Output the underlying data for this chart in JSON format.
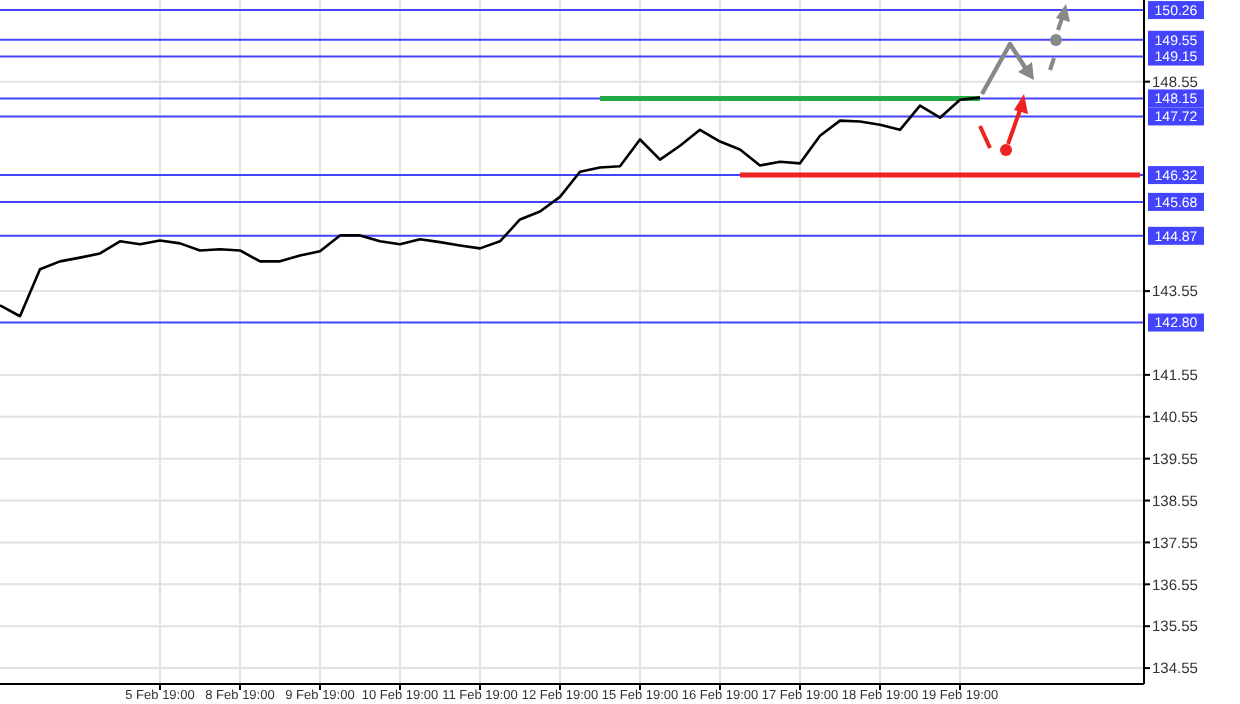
{
  "chart_data": {
    "type": "line",
    "categories": [
      null,
      null,
      null,
      null,
      null,
      null,
      null,
      null,
      "5 Feb 19:00",
      null,
      null,
      null,
      "8 Feb 19:00",
      null,
      null,
      null,
      "9 Feb 19:00",
      null,
      null,
      null,
      "10 Feb 19:00",
      null,
      null,
      null,
      "11 Feb 19:00",
      null,
      null,
      null,
      "12 Feb 19:00",
      null,
      null,
      null,
      "15 Feb 19:00",
      null,
      null,
      null,
      "16 Feb 19:00",
      null,
      null,
      null,
      "17 Feb 19:00",
      null,
      null,
      null,
      "18 Feb 19:00",
      null,
      null,
      null,
      "19 Feb 19:00",
      null,
      null,
      null,
      null,
      null,
      null,
      null,
      null,
      null
    ],
    "series": [
      {
        "color": "#000000",
        "values": [
          143.21,
          142.95,
          144.07,
          144.26,
          144.35,
          144.45,
          144.74,
          144.67,
          144.76,
          144.69,
          144.52,
          144.55,
          144.52,
          144.26,
          144.26,
          144.4,
          144.5,
          144.88,
          144.88,
          144.74,
          144.67,
          144.79,
          144.72,
          144.64,
          144.57,
          144.74,
          145.26,
          145.45,
          145.8,
          146.4,
          146.5,
          146.53,
          147.17,
          146.69,
          147.02,
          147.4,
          147.12,
          146.93,
          146.55,
          146.64,
          146.6,
          147.26,
          147.62,
          147.6,
          147.52,
          147.4,
          147.98,
          147.69,
          148.12,
          148.17,
          null,
          null,
          null,
          null,
          null,
          null,
          null,
          null
        ]
      },
      {
        "type": "line",
        "color": "#22aa44",
        "values": [
          null,
          null,
          null,
          null,
          null,
          null,
          null,
          null,
          null,
          null,
          null,
          null,
          null,
          null,
          null,
          null,
          null,
          null,
          null,
          null,
          null,
          null,
          null,
          null,
          null,
          null,
          null,
          null,
          null,
          null,
          148.15,
          148.15,
          148.15,
          148.15,
          148.15,
          148.15,
          148.15,
          148.15,
          148.15,
          148.15,
          148.15,
          148.15,
          148.15,
          148.15,
          148.15,
          148.15,
          148.15,
          148.15,
          148.15,
          148.15,
          null,
          null,
          null,
          null,
          null,
          null,
          null,
          null
        ]
      },
      {
        "type": "line",
        "color": "#ee2222",
        "values": [
          null,
          null,
          null,
          null,
          null,
          null,
          null,
          null,
          null,
          null,
          null,
          null,
          null,
          null,
          null,
          null,
          null,
          null,
          null,
          null,
          null,
          null,
          null,
          null,
          null,
          null,
          null,
          null,
          null,
          null,
          null,
          null,
          null,
          null,
          null,
          null,
          null,
          146.32,
          146.32,
          146.32,
          146.32,
          146.32,
          146.32,
          146.32,
          146.32,
          146.32,
          146.32,
          146.32,
          146.32,
          146.32,
          146.32,
          146.32,
          146.32,
          146.32,
          146.32,
          146.32,
          146.32,
          146.32
        ]
      }
    ],
    "ylim": [
      134.17,
      150.5
    ],
    "yticks": [
      134.55,
      135.55,
      136.55,
      137.55,
      138.55,
      139.55,
      140.55,
      141.55,
      143.55,
      148.55
    ],
    "grid": true,
    "ref_lines": [
      {
        "axis": "y",
        "value": 150.26,
        "label": "150.26",
        "color": "#4444ff"
      },
      {
        "axis": "y",
        "value": 149.55,
        "label": "149.55",
        "color": "#4444ff"
      },
      {
        "axis": "y",
        "value": 149.15,
        "label": "149.15",
        "color": "#4444ff"
      },
      {
        "axis": "y",
        "value": 148.15,
        "label": "148.15",
        "color": "#4444ff"
      },
      {
        "axis": "y",
        "value": 147.72,
        "label": "147.72",
        "color": "#4444ff"
      },
      {
        "axis": "y",
        "value": 146.32,
        "label": "146.32",
        "color": "#4444ff"
      },
      {
        "axis": "y",
        "value": 145.68,
        "label": "145.68",
        "color": "#4444ff"
      },
      {
        "axis": "y",
        "value": 144.87,
        "label": "144.87",
        "color": "#4444ff"
      },
      {
        "axis": "y",
        "value": 142.8,
        "label": "142.80",
        "color": "#4444ff"
      }
    ]
  }
}
